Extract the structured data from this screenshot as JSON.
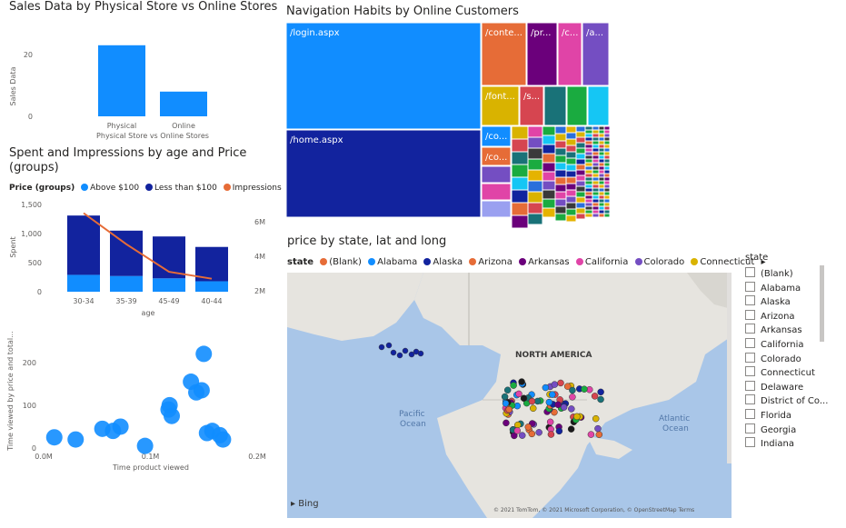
{
  "charts": {
    "sales": {
      "title": "Sales Data by Physical Store vs Online Stores",
      "ylabel": "Sales Data",
      "xlabel": "Physical Store vs Online Stores",
      "yticks": [
        "0",
        "20"
      ]
    },
    "spent": {
      "title_line1": "Spent and Impressions by age and Price",
      "title_line2": "(groups)",
      "legend_title": "Price (groups)",
      "ylabel": "Spent",
      "xlabel": "age",
      "yticks_left": [
        "0",
        "500",
        "1,000",
        "1,500"
      ],
      "yticks_right": [
        "2M",
        "4M",
        "6M"
      ]
    },
    "scatter": {
      "ylabel": "Time viewed by price and total...",
      "xlabel": "Time product viewed",
      "yticks": [
        "0",
        "100",
        "200"
      ],
      "xticks": [
        "0.0M",
        "0.1M",
        "0.2M"
      ]
    },
    "treemap": {
      "title": "Navigation Habits by Online Customers",
      "labels": [
        "/login.aspx",
        "/home.aspx",
        "/conte...",
        "/pr...",
        "/c...",
        "/a...",
        "/font...",
        "/s...",
        "/co...",
        "/co..."
      ]
    },
    "map": {
      "title": "price by state, lat and long",
      "legend_title": "state",
      "legend_items": [
        "(Blank)",
        "Alabama",
        "Alaska",
        "Arizona",
        "Arkansas",
        "California",
        "Colorado",
        "Connecticut"
      ],
      "continent_label": "NORTH AMERICA",
      "pacific_1": "Pacific",
      "pacific_2": "Ocean",
      "atlantic_1": "Atlantic",
      "atlantic_2": "Ocean",
      "bing": "Bing",
      "copyright": "© 2021 TomTom, © 2021 Microsoft Corporation, © OpenStreetMap  Terms"
    }
  },
  "slicer": {
    "title": "state",
    "items": [
      "(Blank)",
      "Alabama",
      "Alaska",
      "Arizona",
      "Arkansas",
      "California",
      "Colorado",
      "Connecticut",
      "Delaware",
      "District of Co...",
      "Florida",
      "Georgia",
      "Indiana"
    ]
  },
  "colors": {
    "primary_blue": "#118DFF",
    "dark_blue": "#12239E",
    "orange": "#E66C37",
    "purple": "#6B007B",
    "pink": "#E044A7",
    "violet": "#744EC2",
    "gold": "#D9B300",
    "red": "#D64550",
    "teal": "#197278",
    "green": "#1AAB40",
    "cyan": "#15C6F4",
    "map_water": "#a9c6e8",
    "map_land": "#e6e4df"
  },
  "chart_data": [
    {
      "type": "bar",
      "title": "Sales Data by Physical Store vs Online Stores",
      "categories": [
        "Physical",
        "Online"
      ],
      "values": [
        23,
        8
      ],
      "xlabel": "Physical Store vs Online Stores",
      "ylabel": "Sales Data",
      "ylim": [
        0,
        25
      ]
    },
    {
      "type": "bar",
      "title": "Spent and Impressions by age and Price (groups)",
      "categories": [
        "30-34",
        "35-39",
        "45-49",
        "40-44"
      ],
      "series": [
        {
          "name": "Above $100",
          "values": [
            290,
            270,
            230,
            180
          ]
        },
        {
          "name": "Less than $100",
          "values": [
            1020,
            780,
            720,
            590
          ]
        },
        {
          "name": "Impressions",
          "values": [
            6.5,
            4.7,
            3.1,
            2.7
          ],
          "axis": "secondary",
          "unit": "M",
          "type": "line"
        }
      ],
      "xlabel": "age",
      "ylabel": "Spent",
      "ylim": [
        0,
        1500
      ],
      "y2lim": [
        2,
        7
      ]
    },
    {
      "type": "scatter",
      "x": [
        0.01,
        0.03,
        0.055,
        0.065,
        0.072,
        0.095,
        0.117,
        0.118,
        0.12,
        0.138,
        0.143,
        0.148,
        0.15,
        0.153,
        0.158,
        0.165,
        0.168
      ],
      "y": [
        25,
        20,
        45,
        40,
        50,
        5,
        90,
        100,
        75,
        155,
        130,
        135,
        220,
        35,
        40,
        30,
        20
      ],
      "xlabel": "Time product viewed",
      "ylabel": "Time viewed by price and total...",
      "xlim": [
        0,
        0.2
      ],
      "ylim": [
        0,
        240
      ]
    },
    {
      "type": "treemap",
      "title": "Navigation Habits by Online Customers",
      "categories": [
        "/login.aspx",
        "/home.aspx",
        "/conte...",
        "/pr...",
        "/c...",
        "/a...",
        "/font...",
        "/s...",
        "/co...",
        "/co..."
      ]
    }
  ]
}
